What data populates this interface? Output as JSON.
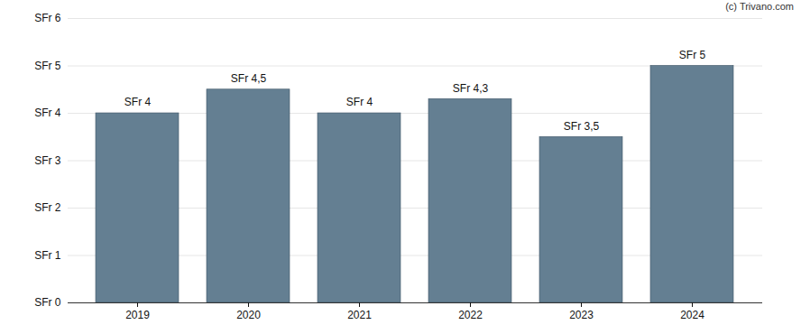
{
  "chart_data": {
    "type": "bar",
    "caption": "(c) Trivano.com",
    "categories": [
      "2019",
      "2020",
      "2021",
      "2022",
      "2023",
      "2024"
    ],
    "values": [
      4,
      4.5,
      4,
      4.3,
      3.5,
      5
    ],
    "value_labels": [
      "SFr 4",
      "SFr 4,5",
      "SFr 4",
      "SFr 4,3",
      "SFr 3,5",
      "SFr 5"
    ],
    "data_labels": true,
    "color": "#647f92",
    "ylim": [
      0,
      6
    ],
    "yticks": [
      {
        "value": 0,
        "label": "SFr 0"
      },
      {
        "value": 1,
        "label": "SFr 1"
      },
      {
        "value": 2,
        "label": "SFr 2"
      },
      {
        "value": 3,
        "label": "SFr 3"
      },
      {
        "value": 4,
        "label": "SFr 4"
      },
      {
        "value": 5,
        "label": "SFr 5"
      },
      {
        "value": 6,
        "label": "SFr 6"
      }
    ],
    "grid": true
  }
}
